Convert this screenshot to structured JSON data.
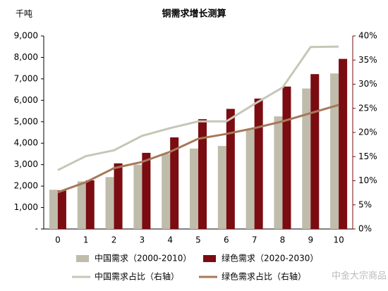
{
  "chart_data": {
    "type": "bar_line",
    "title": "铜需求增长测算",
    "y_label": "千吨",
    "categories": [
      "0",
      "1",
      "2",
      "3",
      "4",
      "5",
      "6",
      "7",
      "8",
      "9",
      "10"
    ],
    "series": [
      {
        "name": "中国需求（2000-2010）",
        "type": "bar",
        "color": "#bfbcab",
        "values": [
          1830,
          2220,
          2420,
          3000,
          3500,
          3750,
          3870,
          4650,
          5250,
          6550,
          7250
        ]
      },
      {
        "name": "绿色需求（2020-2030）",
        "type": "bar",
        "color": "#7a0c12",
        "values": [
          1800,
          2270,
          3060,
          3550,
          4270,
          5120,
          5600,
          6080,
          6640,
          7220,
          7930
        ]
      },
      {
        "name": "中国需求占比（右轴）",
        "type": "line",
        "axis": "y2",
        "color": "#c7c6b7",
        "values": [
          12.2,
          15.1,
          16.3,
          19.3,
          20.9,
          22.3,
          22.3,
          25.9,
          29.3,
          37.7,
          37.8
        ]
      },
      {
        "name": "绿色需求占比（右轴）",
        "type": "line",
        "axis": "y2",
        "color": "#a6785a",
        "values": [
          7.6,
          9.7,
          12.6,
          13.9,
          16.0,
          18.7,
          19.7,
          20.9,
          22.3,
          24.0,
          25.7
        ]
      }
    ],
    "ylim": [
      0,
      9000
    ],
    "yticks": [
      {
        "value": 0,
        "label": "-"
      },
      {
        "value": 1000,
        "label": "1,000"
      },
      {
        "value": 2000,
        "label": "2,000"
      },
      {
        "value": 3000,
        "label": "3,000"
      },
      {
        "value": 4000,
        "label": "4,000"
      },
      {
        "value": 5000,
        "label": "5,000"
      },
      {
        "value": 6000,
        "label": "6,000"
      },
      {
        "value": 7000,
        "label": "7,000"
      },
      {
        "value": 8000,
        "label": "8,000"
      },
      {
        "value": 9000,
        "label": "9,000"
      }
    ],
    "y2lim": [
      0,
      40
    ],
    "y2ticks": [
      {
        "value": 0,
        "label": "0%"
      },
      {
        "value": 5,
        "label": "5%"
      },
      {
        "value": 10,
        "label": "10%"
      },
      {
        "value": 15,
        "label": "15%"
      },
      {
        "value": 20,
        "label": "20%"
      },
      {
        "value": 25,
        "label": "25%"
      },
      {
        "value": 30,
        "label": "30%"
      },
      {
        "value": 35,
        "label": "35%"
      },
      {
        "value": 40,
        "label": "40%"
      }
    ],
    "watermark": "中金大宗商品"
  }
}
